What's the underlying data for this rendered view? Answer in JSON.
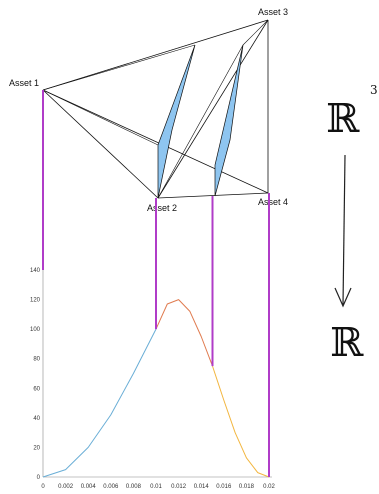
{
  "simplex": {
    "vertices": [
      {
        "id": "asset1",
        "label": "Asset 1"
      },
      {
        "id": "asset2",
        "label": "Asset 2"
      },
      {
        "id": "asset3",
        "label": "Asset 3"
      },
      {
        "id": "asset4",
        "label": "Asset 4"
      }
    ],
    "fill_color": "#8ec5f0"
  },
  "map": {
    "domain_symbol": "ℝ",
    "domain_exponent": "3",
    "codomain_symbol": "ℝ"
  },
  "chart_data": {
    "type": "line",
    "xlim": [
      0,
      0.02
    ],
    "ylim": [
      0,
      140
    ],
    "x_ticks": [
      "0",
      "0.002",
      "0.004",
      "0.006",
      "0.008",
      "0.01",
      "0.012",
      "0.014",
      "0.016",
      "0.018",
      "0.02"
    ],
    "y_ticks": [
      "0",
      "20",
      "40",
      "60",
      "80",
      "100",
      "120",
      "140"
    ],
    "series": [
      {
        "color": "#6aaed6",
        "x": [
          0,
          0.002,
          0.004,
          0.006,
          0.008,
          0.01
        ],
        "y": [
          0,
          5,
          20,
          42,
          70,
          100
        ]
      },
      {
        "color": "#e07b4f",
        "x": [
          0.01,
          0.011,
          0.012,
          0.013,
          0.014,
          0.015
        ],
        "y": [
          100,
          117,
          120,
          112,
          95,
          75
        ]
      },
      {
        "color": "#f2b640",
        "x": [
          0.015,
          0.016,
          0.017,
          0.018,
          0.019,
          0.02
        ],
        "y": [
          75,
          52,
          30,
          13,
          3,
          0
        ]
      }
    ],
    "vertical_lines": [
      {
        "x": 0,
        "y": 140
      },
      {
        "x": 0.01,
        "y": 100
      },
      {
        "x": 0.015,
        "y": 75
      },
      {
        "x": 0.02,
        "y": 0
      }
    ],
    "vertical_line_color": "#b03cc8"
  }
}
